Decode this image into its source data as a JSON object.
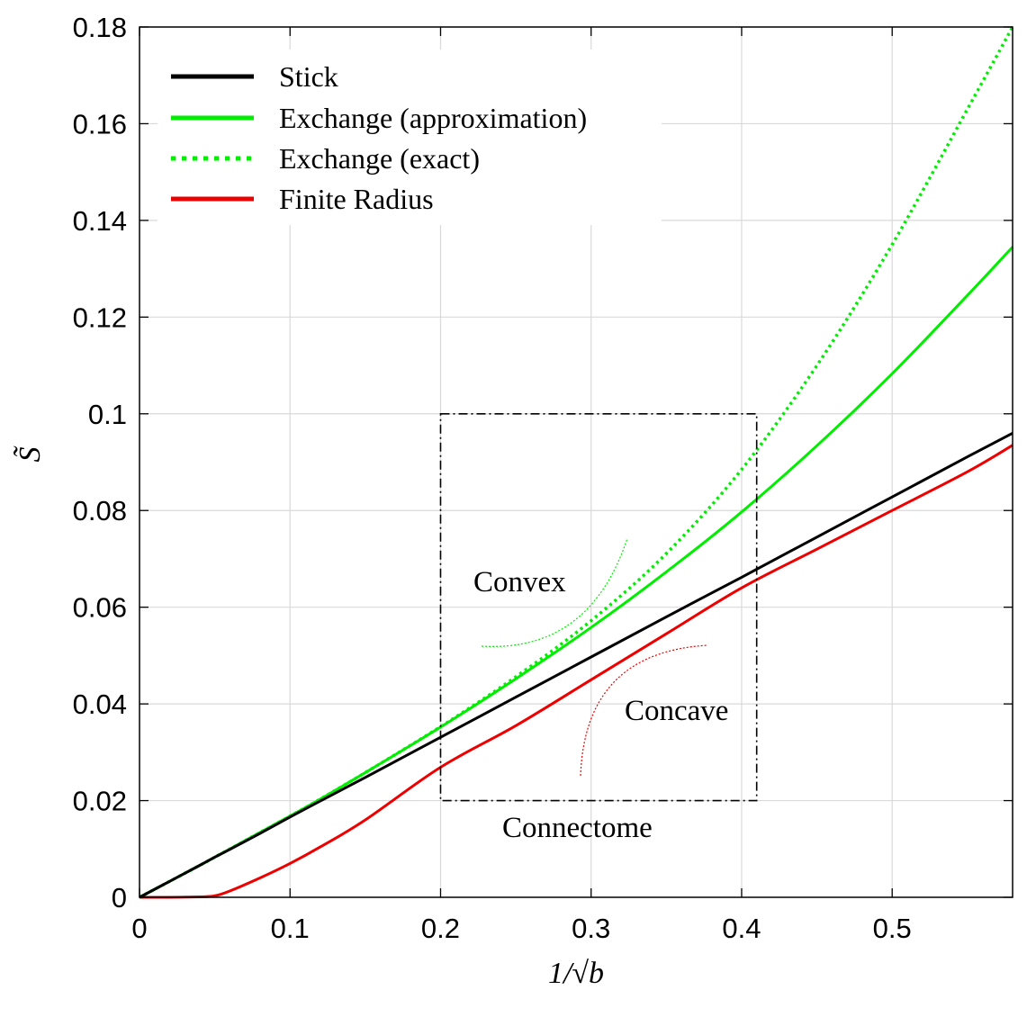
{
  "chart_data": {
    "type": "line",
    "xlabel": "1/√b",
    "ylabel": "S̃",
    "xlim": [
      0,
      0.58
    ],
    "ylim": [
      0,
      0.18
    ],
    "xticks": [
      "0",
      "0.1",
      "0.2",
      "0.3",
      "0.4",
      "0.5"
    ],
    "yticks": [
      "0",
      "0.02",
      "0.04",
      "0.06",
      "0.08",
      "0.1",
      "0.12",
      "0.14",
      "0.16",
      "0.18"
    ],
    "grid": true,
    "legend_position": "top-left",
    "x": [
      0,
      0.02,
      0.04,
      0.05,
      0.06,
      0.08,
      0.1,
      0.12,
      0.15,
      0.2,
      0.25,
      0.3,
      0.35,
      0.4,
      0.45,
      0.5,
      0.55,
      0.58
    ],
    "series": [
      {
        "name": "Stick",
        "color": "#000000",
        "style": "solid",
        "values": [
          0,
          0.0033,
          0.0066,
          0.0083,
          0.0099,
          0.0132,
          0.0166,
          0.0199,
          0.0248,
          0.0331,
          0.0414,
          0.0497,
          0.058,
          0.0662,
          0.0745,
          0.0828,
          0.0911,
          0.096
        ]
      },
      {
        "name": "Exchange (approximation)",
        "color": "#00ee00",
        "style": "solid",
        "values": [
          0,
          0.0033,
          0.0066,
          0.0083,
          0.01,
          0.0134,
          0.0168,
          0.0203,
          0.0258,
          0.0352,
          0.0452,
          0.0558,
          0.0673,
          0.0797,
          0.0934,
          0.1083,
          0.1245,
          0.1345
        ]
      },
      {
        "name": "Exchange (exact)",
        "color": "#00ee00",
        "style": "dotted",
        "values": [
          0,
          0.0033,
          0.0066,
          0.0083,
          0.01,
          0.0134,
          0.0168,
          0.0203,
          0.0258,
          0.0353,
          0.0456,
          0.0572,
          0.0711,
          0.0885,
          0.11,
          0.135,
          0.163,
          0.18
        ]
      },
      {
        "name": "Finite Radius",
        "color": "#ee0000",
        "style": "solid",
        "values": [
          0,
          0,
          0.0001,
          0.0003,
          0.0013,
          0.004,
          0.007,
          0.0104,
          0.016,
          0.0269,
          0.0355,
          0.045,
          0.0545,
          0.064,
          0.072,
          0.08,
          0.088,
          0.0935
        ]
      }
    ],
    "annotations": [
      {
        "label": "Convex",
        "color": "#00ee00"
      },
      {
        "label": "Concave",
        "color": "#ee0000"
      },
      {
        "label": "Connectome",
        "box_x": [
          0.2,
          0.41
        ],
        "box_y": [
          0.02,
          0.1
        ]
      }
    ]
  }
}
